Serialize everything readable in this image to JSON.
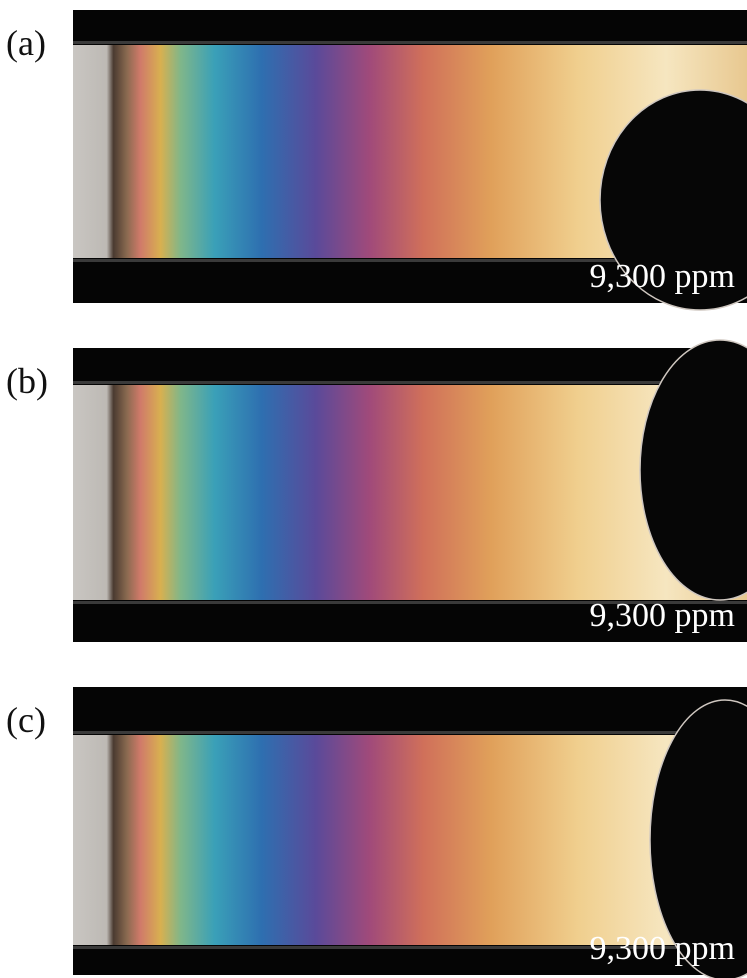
{
  "panels": [
    {
      "label": "(a)",
      "concentration": "9,300 ppm"
    },
    {
      "label": "(b)",
      "concentration": "9,300 ppm"
    },
    {
      "label": "(c)",
      "concentration": "9,300 ppm"
    }
  ]
}
